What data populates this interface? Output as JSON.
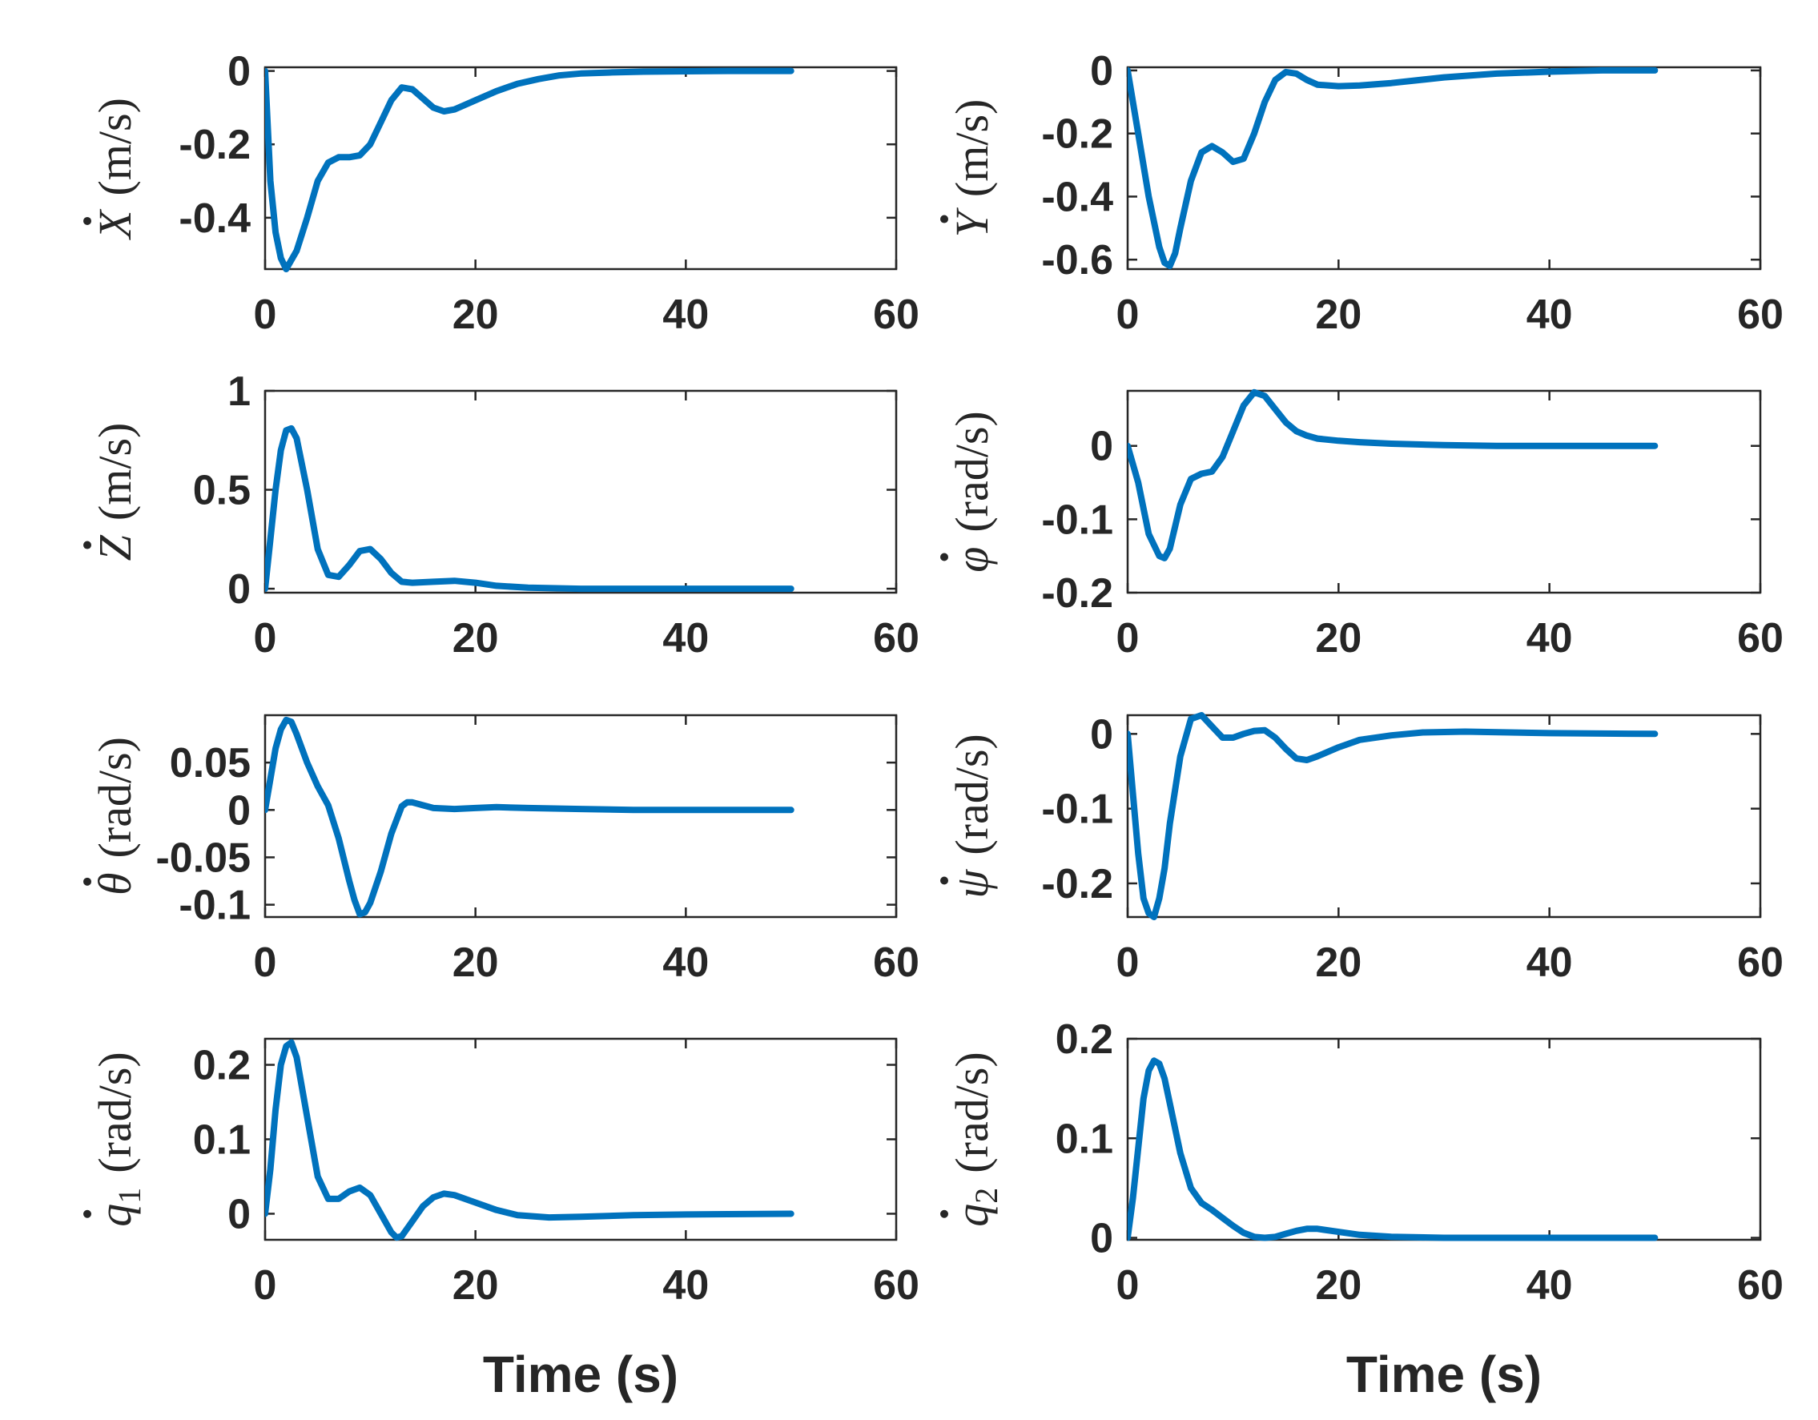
{
  "colors": {
    "series": "#0072BD",
    "axes": "#262626"
  },
  "chart_data": [
    {
      "type": "line",
      "ylabel_sym": "X",
      "ylabel_sub": "",
      "ylabel_unit": "(m/s)",
      "xlabel": "",
      "xlim": [
        0,
        60
      ],
      "ylim": [
        -0.54,
        0.01
      ],
      "xticks": [
        "0",
        "20",
        "40",
        "60"
      ],
      "yticks": [
        "-0.4",
        "-0.2",
        "0"
      ],
      "ytick_values": [
        -0.4,
        -0.2,
        0
      ],
      "series": [
        {
          "name": "X_dot",
          "x": [
            0,
            0.5,
            1,
            1.5,
            2,
            3,
            4,
            5,
            6,
            7,
            8,
            9,
            10,
            11,
            12,
            13,
            14,
            15,
            16,
            17,
            18,
            20,
            22,
            24,
            26,
            28,
            30,
            33,
            36,
            40,
            44,
            50
          ],
          "y": [
            0,
            -0.3,
            -0.44,
            -0.51,
            -0.54,
            -0.49,
            -0.4,
            -0.3,
            -0.25,
            -0.235,
            -0.235,
            -0.23,
            -0.2,
            -0.14,
            -0.08,
            -0.045,
            -0.05,
            -0.075,
            -0.1,
            -0.11,
            -0.105,
            -0.08,
            -0.055,
            -0.035,
            -0.022,
            -0.012,
            -0.007,
            -0.004,
            -0.002,
            -0.001,
            0,
            0
          ]
        }
      ]
    },
    {
      "type": "line",
      "ylabel_sym": "Y",
      "ylabel_sub": "",
      "ylabel_unit": "(m/s)",
      "xlabel": "",
      "xlim": [
        0,
        60
      ],
      "ylim": [
        -0.63,
        0.01
      ],
      "xticks": [
        "0",
        "20",
        "40",
        "60"
      ],
      "yticks": [
        "-0.6",
        "-0.4",
        "-0.2",
        "0"
      ],
      "ytick_values": [
        -0.6,
        -0.4,
        -0.2,
        0
      ],
      "series": [
        {
          "name": "Y_dot",
          "x": [
            0,
            1,
            2,
            3,
            3.5,
            4,
            4.5,
            5,
            6,
            7,
            8,
            9,
            10,
            11,
            12,
            13,
            14,
            15,
            16,
            17,
            18,
            20,
            22,
            25,
            30,
            35,
            40,
            45,
            50
          ],
          "y": [
            0,
            -0.2,
            -0.4,
            -0.56,
            -0.61,
            -0.62,
            -0.58,
            -0.5,
            -0.35,
            -0.26,
            -0.24,
            -0.26,
            -0.29,
            -0.28,
            -0.2,
            -0.1,
            -0.03,
            -0.005,
            -0.01,
            -0.03,
            -0.045,
            -0.05,
            -0.048,
            -0.04,
            -0.022,
            -0.01,
            -0.004,
            0,
            0
          ]
        }
      ]
    },
    {
      "type": "line",
      "ylabel_sym": "Z",
      "ylabel_sub": "",
      "ylabel_unit": "(m/s)",
      "xlabel": "",
      "xlim": [
        0,
        60
      ],
      "ylim": [
        -0.02,
        1
      ],
      "xticks": [
        "0",
        "20",
        "40",
        "60"
      ],
      "yticks": [
        "0",
        "0.5",
        "1"
      ],
      "ytick_values": [
        0,
        0.5,
        1
      ],
      "series": [
        {
          "name": "Z_dot",
          "x": [
            0,
            0.5,
            1,
            1.5,
            2,
            2.5,
            3,
            4,
            5,
            6,
            7,
            8,
            9,
            10,
            11,
            12,
            13,
            14,
            16,
            18,
            20,
            22,
            25,
            30,
            35,
            40,
            50
          ],
          "y": [
            0,
            0.25,
            0.5,
            0.7,
            0.8,
            0.81,
            0.76,
            0.5,
            0.2,
            0.07,
            0.06,
            0.12,
            0.19,
            0.2,
            0.15,
            0.08,
            0.035,
            0.03,
            0.035,
            0.04,
            0.03,
            0.015,
            0.005,
            0,
            0,
            0,
            0
          ]
        }
      ]
    },
    {
      "type": "line",
      "ylabel_sym": "φ",
      "ylabel_sub": "",
      "ylabel_unit": "(rad/s)",
      "xlabel": "",
      "xlim": [
        0,
        60
      ],
      "ylim": [
        -0.2,
        0.075
      ],
      "xticks": [
        "0",
        "20",
        "40",
        "60"
      ],
      "yticks": [
        "-0.2",
        "-0.1",
        "0"
      ],
      "ytick_values": [
        -0.2,
        -0.1,
        0
      ],
      "series": [
        {
          "name": "phi_dot",
          "x": [
            0,
            1,
            2,
            3,
            3.5,
            4,
            5,
            6,
            7,
            8,
            9,
            10,
            11,
            12,
            13,
            14,
            15,
            16,
            17,
            18,
            20,
            22,
            25,
            30,
            35,
            40,
            50
          ],
          "y": [
            0,
            -0.05,
            -0.12,
            -0.15,
            -0.153,
            -0.14,
            -0.08,
            -0.045,
            -0.038,
            -0.035,
            -0.015,
            0.02,
            0.055,
            0.073,
            0.068,
            0.05,
            0.032,
            0.02,
            0.014,
            0.01,
            0.007,
            0.005,
            0.003,
            0.001,
            0,
            0,
            0
          ]
        }
      ]
    },
    {
      "type": "line",
      "ylabel_sym": "θ",
      "ylabel_sub": "",
      "ylabel_unit": "(rad/s)",
      "xlabel": "",
      "xlim": [
        0,
        60
      ],
      "ylim": [
        -0.113,
        0.1
      ],
      "xticks": [
        "0",
        "20",
        "40",
        "60"
      ],
      "yticks": [
        "-0.1",
        "-0.05",
        "0",
        "0.05"
      ],
      "ytick_values": [
        -0.1,
        -0.05,
        0,
        0.05
      ],
      "series": [
        {
          "name": "theta_dot",
          "x": [
            0,
            1,
            1.5,
            2,
            2.5,
            3,
            4,
            5,
            6,
            7,
            8,
            8.5,
            9,
            9.5,
            10,
            11,
            12,
            13,
            13.5,
            14,
            15,
            16,
            18,
            20,
            22,
            25,
            30,
            35,
            40,
            50
          ],
          "y": [
            0,
            0.065,
            0.085,
            0.095,
            0.093,
            0.08,
            0.05,
            0.025,
            0.005,
            -0.03,
            -0.075,
            -0.095,
            -0.11,
            -0.108,
            -0.098,
            -0.065,
            -0.025,
            0.004,
            0.008,
            0.008,
            0.005,
            0.002,
            0.001,
            0.002,
            0.003,
            0.002,
            0.001,
            0,
            0,
            0
          ]
        }
      ]
    },
    {
      "type": "line",
      "ylabel_sym": "ψ",
      "ylabel_sub": "",
      "ylabel_unit": "(rad/s)",
      "xlabel": "",
      "xlim": [
        0,
        60
      ],
      "ylim": [
        -0.245,
        0.025
      ],
      "xticks": [
        "0",
        "20",
        "40",
        "60"
      ],
      "yticks": [
        "-0.2",
        "-0.1",
        "0"
      ],
      "ytick_values": [
        -0.2,
        -0.1,
        0
      ],
      "series": [
        {
          "name": "psi_dot",
          "x": [
            0,
            0.5,
            1,
            1.5,
            2,
            2.5,
            3,
            3.5,
            4,
            5,
            6,
            7,
            8,
            9,
            10,
            11,
            12,
            13,
            14,
            15,
            16,
            17,
            18,
            20,
            22,
            25,
            28,
            32,
            40,
            50
          ],
          "y": [
            0,
            -0.08,
            -0.16,
            -0.22,
            -0.24,
            -0.245,
            -0.22,
            -0.18,
            -0.12,
            -0.03,
            0.02,
            0.025,
            0.01,
            -0.005,
            -0.005,
            0,
            0.004,
            0.005,
            -0.005,
            -0.02,
            -0.033,
            -0.035,
            -0.03,
            -0.018,
            -0.008,
            -0.002,
            0.002,
            0.003,
            0.001,
            0
          ]
        }
      ]
    },
    {
      "type": "line",
      "ylabel_sym": "q",
      "ylabel_sub": "1",
      "ylabel_unit": "(rad/s)",
      "xlabel": "Time (s)",
      "xlim": [
        0,
        60
      ],
      "ylim": [
        -0.035,
        0.235
      ],
      "xticks": [
        "0",
        "20",
        "40",
        "60"
      ],
      "yticks": [
        "0",
        "0.1",
        "0.2"
      ],
      "ytick_values": [
        0,
        0.1,
        0.2
      ],
      "series": [
        {
          "name": "q1_dot",
          "x": [
            0,
            0.5,
            1,
            1.5,
            2,
            2.5,
            3,
            4,
            5,
            6,
            7,
            8,
            9,
            10,
            11,
            12,
            12.5,
            13,
            14,
            15,
            16,
            17,
            18,
            20,
            22,
            24,
            27,
            30,
            35,
            40,
            50
          ],
          "y": [
            0,
            0.06,
            0.14,
            0.2,
            0.225,
            0.23,
            0.21,
            0.13,
            0.05,
            0.02,
            0.02,
            0.03,
            0.035,
            0.025,
            0.0,
            -0.025,
            -0.032,
            -0.03,
            -0.01,
            0.01,
            0.022,
            0.027,
            0.025,
            0.015,
            0.005,
            -0.002,
            -0.005,
            -0.004,
            -0.002,
            -0.001,
            0
          ]
        }
      ]
    },
    {
      "type": "line",
      "ylabel_sym": "q",
      "ylabel_sub": "2",
      "ylabel_unit": "(rad/s)",
      "xlabel": "Time (s)",
      "xlim": [
        0,
        60
      ],
      "ylim": [
        -0.002,
        0.2
      ],
      "xticks": [
        "0",
        "20",
        "40",
        "60"
      ],
      "yticks": [
        "0",
        "0.1",
        "0.2"
      ],
      "ytick_values": [
        0,
        0.1,
        0.2
      ],
      "series": [
        {
          "name": "q2_dot",
          "x": [
            0,
            0.5,
            1,
            1.5,
            2,
            2.5,
            3,
            3.5,
            4,
            5,
            6,
            7,
            8,
            9,
            10,
            11,
            12,
            13,
            14,
            15,
            16,
            17,
            18,
            20,
            22,
            25,
            30,
            35,
            40,
            50
          ],
          "y": [
            0,
            0.04,
            0.09,
            0.14,
            0.168,
            0.178,
            0.175,
            0.16,
            0.135,
            0.085,
            0.05,
            0.035,
            0.028,
            0.02,
            0.012,
            0.005,
            0.001,
            0.0,
            0.001,
            0.004,
            0.007,
            0.009,
            0.009,
            0.006,
            0.003,
            0.001,
            0,
            0,
            0,
            0
          ]
        }
      ]
    }
  ]
}
